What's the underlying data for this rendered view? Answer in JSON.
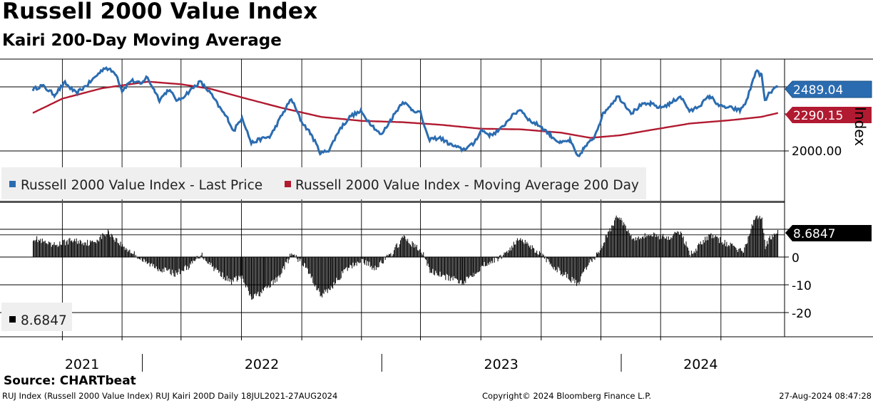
{
  "header": {
    "title": "Russell 2000 Value Index",
    "subtitle": "Kairi 200-Day Moving Average"
  },
  "footer": {
    "source": "Source: CHARTbeat",
    "ticker_info": "RUJ Index (Russell 2000 Value Index) RUJ Kairi 200D  Daily 18JUL2021-27AUG2024",
    "copyright": "Copyright© 2024 Bloomberg Finance L.P.",
    "timestamp": "27-Aug-2024 08:47:28"
  },
  "colors": {
    "price": "#2b6cb0",
    "moving_average": "#b11a30",
    "kairi": "#000000",
    "grid": "#000000",
    "legend_bg": "#efefef"
  },
  "chart_data": [
    {
      "type": "line",
      "panel": "upper",
      "x_range": [
        "2021-07-18",
        "2024-08-27"
      ],
      "y_axis": {
        "label": "Index",
        "tick_labels": [
          "2000.00"
        ],
        "position": "right"
      },
      "grid": true,
      "legend": {
        "placement": "bottom-left",
        "entries": [
          "Russell 2000 Value Index - Last Price",
          "Russell 2000 Value Index - Moving Average 200 Day"
        ]
      },
      "last_values": {
        "price": "2489.04",
        "moving_average": "2290.15"
      },
      "series": [
        {
          "name": "Russell 2000 Value Index - Last Price",
          "points": [
            [
              "2021-07-18",
              2470
            ],
            [
              "2021-08-01",
              2500
            ],
            [
              "2021-08-20",
              2430
            ],
            [
              "2021-09-05",
              2520
            ],
            [
              "2021-09-22",
              2440
            ],
            [
              "2021-10-10",
              2510
            ],
            [
              "2021-11-05",
              2640
            ],
            [
              "2021-11-22",
              2590
            ],
            [
              "2021-12-01",
              2460
            ],
            [
              "2021-12-15",
              2540
            ],
            [
              "2021-12-31",
              2510
            ],
            [
              "2022-01-07",
              2570
            ],
            [
              "2022-01-20",
              2460
            ],
            [
              "2022-01-27",
              2390
            ],
            [
              "2022-02-10",
              2470
            ],
            [
              "2022-02-24",
              2380
            ],
            [
              "2022-03-10",
              2440
            ],
            [
              "2022-03-30",
              2530
            ],
            [
              "2022-04-15",
              2440
            ],
            [
              "2022-04-29",
              2330
            ],
            [
              "2022-05-12",
              2240
            ],
            [
              "2022-05-20",
              2150
            ],
            [
              "2022-06-02",
              2260
            ],
            [
              "2022-06-16",
              2060
            ],
            [
              "2022-06-30",
              2090
            ],
            [
              "2022-07-15",
              2110
            ],
            [
              "2022-07-29",
              2240
            ],
            [
              "2022-08-16",
              2400
            ],
            [
              "2022-08-31",
              2230
            ],
            [
              "2022-09-15",
              2130
            ],
            [
              "2022-09-30",
              1980
            ],
            [
              "2022-10-13",
              2010
            ],
            [
              "2022-10-28",
              2160
            ],
            [
              "2022-11-15",
              2270
            ],
            [
              "2022-11-30",
              2300
            ],
            [
              "2022-12-15",
              2210
            ],
            [
              "2022-12-31",
              2120
            ],
            [
              "2023-01-15",
              2240
            ],
            [
              "2023-02-02",
              2380
            ],
            [
              "2023-02-15",
              2320
            ],
            [
              "2023-03-01",
              2290
            ],
            [
              "2023-03-13",
              2090
            ],
            [
              "2023-03-31",
              2100
            ],
            [
              "2023-04-15",
              2050
            ],
            [
              "2023-05-04",
              2010
            ],
            [
              "2023-05-20",
              2050
            ],
            [
              "2023-06-02",
              2160
            ],
            [
              "2023-06-15",
              2120
            ],
            [
              "2023-06-30",
              2160
            ],
            [
              "2023-07-15",
              2250
            ],
            [
              "2023-07-31",
              2320
            ],
            [
              "2023-08-15",
              2230
            ],
            [
              "2023-08-31",
              2190
            ],
            [
              "2023-09-15",
              2120
            ],
            [
              "2023-09-30",
              2060
            ],
            [
              "2023-10-15",
              2080
            ],
            [
              "2023-10-27",
              1950
            ],
            [
              "2023-11-05",
              2020
            ],
            [
              "2023-11-20",
              2100
            ],
            [
              "2023-12-05",
              2290
            ],
            [
              "2023-12-27",
              2420
            ],
            [
              "2024-01-17",
              2290
            ],
            [
              "2024-01-31",
              2350
            ],
            [
              "2024-02-15",
              2360
            ],
            [
              "2024-02-29",
              2330
            ],
            [
              "2024-03-15",
              2360
            ],
            [
              "2024-03-31",
              2420
            ],
            [
              "2024-04-15",
              2300
            ],
            [
              "2024-04-30",
              2350
            ],
            [
              "2024-05-15",
              2420
            ],
            [
              "2024-05-31",
              2340
            ],
            [
              "2024-06-15",
              2330
            ],
            [
              "2024-06-30",
              2310
            ],
            [
              "2024-07-10",
              2380
            ],
            [
              "2024-07-24",
              2610
            ],
            [
              "2024-08-02",
              2580
            ],
            [
              "2024-08-07",
              2380
            ],
            [
              "2024-08-15",
              2450
            ],
            [
              "2024-08-27",
              2489.04
            ]
          ]
        },
        {
          "name": "Russell 2000 Value Index - Moving Average 200 Day",
          "points": [
            [
              "2021-07-18",
              2290
            ],
            [
              "2021-09-01",
              2400
            ],
            [
              "2021-11-01",
              2480
            ],
            [
              "2022-01-10",
              2530
            ],
            [
              "2022-03-01",
              2510
            ],
            [
              "2022-04-15",
              2475
            ],
            [
              "2022-06-01",
              2410
            ],
            [
              "2022-08-01",
              2330
            ],
            [
              "2022-10-01",
              2260
            ],
            [
              "2022-12-01",
              2230
            ],
            [
              "2023-02-01",
              2220
            ],
            [
              "2023-04-01",
              2200
            ],
            [
              "2023-06-01",
              2170
            ],
            [
              "2023-08-01",
              2165
            ],
            [
              "2023-10-01",
              2140
            ],
            [
              "2023-11-15",
              2100
            ],
            [
              "2023-12-31",
              2120
            ],
            [
              "2024-02-15",
              2160
            ],
            [
              "2024-04-15",
              2210
            ],
            [
              "2024-06-15",
              2235
            ],
            [
              "2024-08-01",
              2260
            ],
            [
              "2024-08-27",
              2290.15
            ]
          ]
        }
      ]
    },
    {
      "type": "bar",
      "panel": "lower",
      "x_range": [
        "2021-07-18",
        "2024-08-27"
      ],
      "y_axis": {
        "tick_labels": [
          "0",
          "-10",
          "-20"
        ],
        "ylim": [
          -28,
          18
        ],
        "position": "right"
      },
      "grid": true,
      "legend": {
        "placement": "bottom-left",
        "entries": [
          "8.6847"
        ]
      },
      "last_value": "8.6847",
      "series": [
        {
          "name": "8.6847",
          "points": [
            [
              "2021-07-18",
              7
            ],
            [
              "2021-08-15",
              4
            ],
            [
              "2021-09-15",
              6
            ],
            [
              "2021-10-15",
              5
            ],
            [
              "2021-11-10",
              9
            ],
            [
              "2021-12-01",
              4
            ],
            [
              "2021-12-20",
              1
            ],
            [
              "2022-01-05",
              -2
            ],
            [
              "2022-01-25",
              -4
            ],
            [
              "2022-02-20",
              -6
            ],
            [
              "2022-03-15",
              -3
            ],
            [
              "2022-03-31",
              1
            ],
            [
              "2022-04-20",
              -4
            ],
            [
              "2022-05-15",
              -9
            ],
            [
              "2022-05-31",
              -7
            ],
            [
              "2022-06-16",
              -15
            ],
            [
              "2022-07-05",
              -12
            ],
            [
              "2022-07-25",
              -8
            ],
            [
              "2022-08-16",
              1
            ],
            [
              "2022-09-05",
              -3
            ],
            [
              "2022-09-30",
              -14
            ],
            [
              "2022-10-15",
              -11
            ],
            [
              "2022-11-05",
              -5
            ],
            [
              "2022-11-30",
              -1
            ],
            [
              "2022-12-20",
              -4
            ],
            [
              "2023-01-15",
              1
            ],
            [
              "2023-02-02",
              7
            ],
            [
              "2023-02-20",
              4
            ],
            [
              "2023-03-05",
              1
            ],
            [
              "2023-03-15",
              -5
            ],
            [
              "2023-04-05",
              -7
            ],
            [
              "2023-05-04",
              -9
            ],
            [
              "2023-05-20",
              -6
            ],
            [
              "2023-06-10",
              -2
            ],
            [
              "2023-06-25",
              -1
            ],
            [
              "2023-07-15",
              3
            ],
            [
              "2023-07-31",
              7
            ],
            [
              "2023-08-15",
              4
            ],
            [
              "2023-08-31",
              1
            ],
            [
              "2023-09-15",
              -3
            ],
            [
              "2023-10-05",
              -6
            ],
            [
              "2023-10-27",
              -10
            ],
            [
              "2023-11-10",
              -3
            ],
            [
              "2023-11-25",
              1
            ],
            [
              "2023-12-10",
              8
            ],
            [
              "2023-12-27",
              15
            ],
            [
              "2024-01-17",
              7
            ],
            [
              "2024-02-15",
              8
            ],
            [
              "2024-03-15",
              7
            ],
            [
              "2024-03-31",
              9
            ],
            [
              "2024-04-15",
              1
            ],
            [
              "2024-05-15",
              8
            ],
            [
              "2024-06-15",
              4
            ],
            [
              "2024-07-05",
              2
            ],
            [
              "2024-07-24",
              15
            ],
            [
              "2024-08-02",
              14
            ],
            [
              "2024-08-07",
              4
            ],
            [
              "2024-08-15",
              7
            ],
            [
              "2024-08-27",
              8.6847
            ]
          ]
        }
      ]
    }
  ],
  "x_axis": {
    "years": [
      {
        "label": "2021",
        "center": "2021-10-01"
      },
      {
        "label": "2022",
        "center": "2022-07-02"
      },
      {
        "label": "2023",
        "center": "2023-07-02"
      },
      {
        "label": "2024",
        "center": "2024-05-01"
      }
    ],
    "year_boundaries": [
      "2022-01-01",
      "2023-01-01",
      "2024-01-01"
    ],
    "gridlines": [
      "2021-09-01",
      "2021-12-01",
      "2022-03-01",
      "2022-06-01",
      "2022-09-01",
      "2022-12-01",
      "2023-03-01",
      "2023-06-01",
      "2023-09-01",
      "2023-12-01",
      "2024-03-01",
      "2024-06-01"
    ]
  }
}
